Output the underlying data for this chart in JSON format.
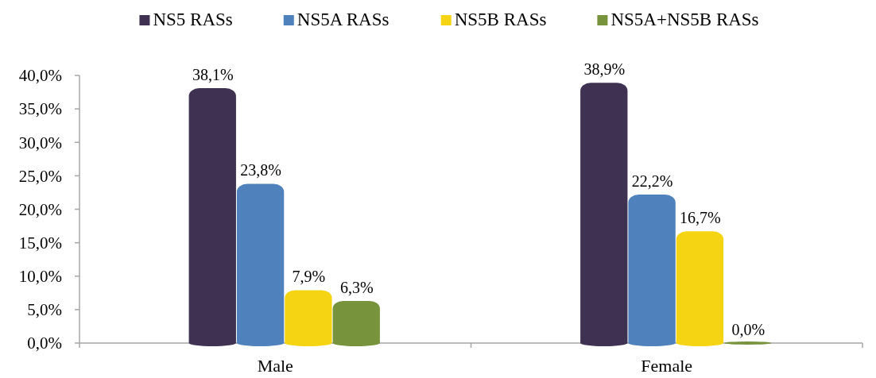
{
  "chart_data": {
    "type": "bar",
    "categories": [
      "Male",
      "Female"
    ],
    "series": [
      {
        "name": "NS5 RASs",
        "color": "#3f3151",
        "values": [
          38.1,
          38.9
        ],
        "value_labels": [
          "38,1%",
          "38,9%"
        ]
      },
      {
        "name": "NS5A RASs",
        "color": "#4f81bd",
        "values": [
          23.8,
          22.2
        ],
        "value_labels": [
          "23,8%",
          "22,2%"
        ]
      },
      {
        "name": "NS5B RASs",
        "color": "#f5d414",
        "values": [
          7.9,
          16.7
        ],
        "value_labels": [
          "7,9%",
          "16,7%"
        ]
      },
      {
        "name": "NS5A+NS5B RASs",
        "color": "#77933c",
        "values": [
          6.3,
          0.0
        ],
        "value_labels": [
          "6,3%",
          "0,0%"
        ]
      }
    ],
    "ylim": [
      0,
      40
    ],
    "yticks": [
      {
        "value": 0,
        "label": "0,0%"
      },
      {
        "value": 5,
        "label": "5,0%"
      },
      {
        "value": 10,
        "label": "10,0%"
      },
      {
        "value": 15,
        "label": "15,0%"
      },
      {
        "value": 20,
        "label": "20,0%"
      },
      {
        "value": 25,
        "label": "25,0%"
      },
      {
        "value": 30,
        "label": "30,0%"
      },
      {
        "value": 35,
        "label": "35,0%"
      },
      {
        "value": 40,
        "label": "40,0%"
      }
    ],
    "grid": false,
    "legend": "top"
  }
}
